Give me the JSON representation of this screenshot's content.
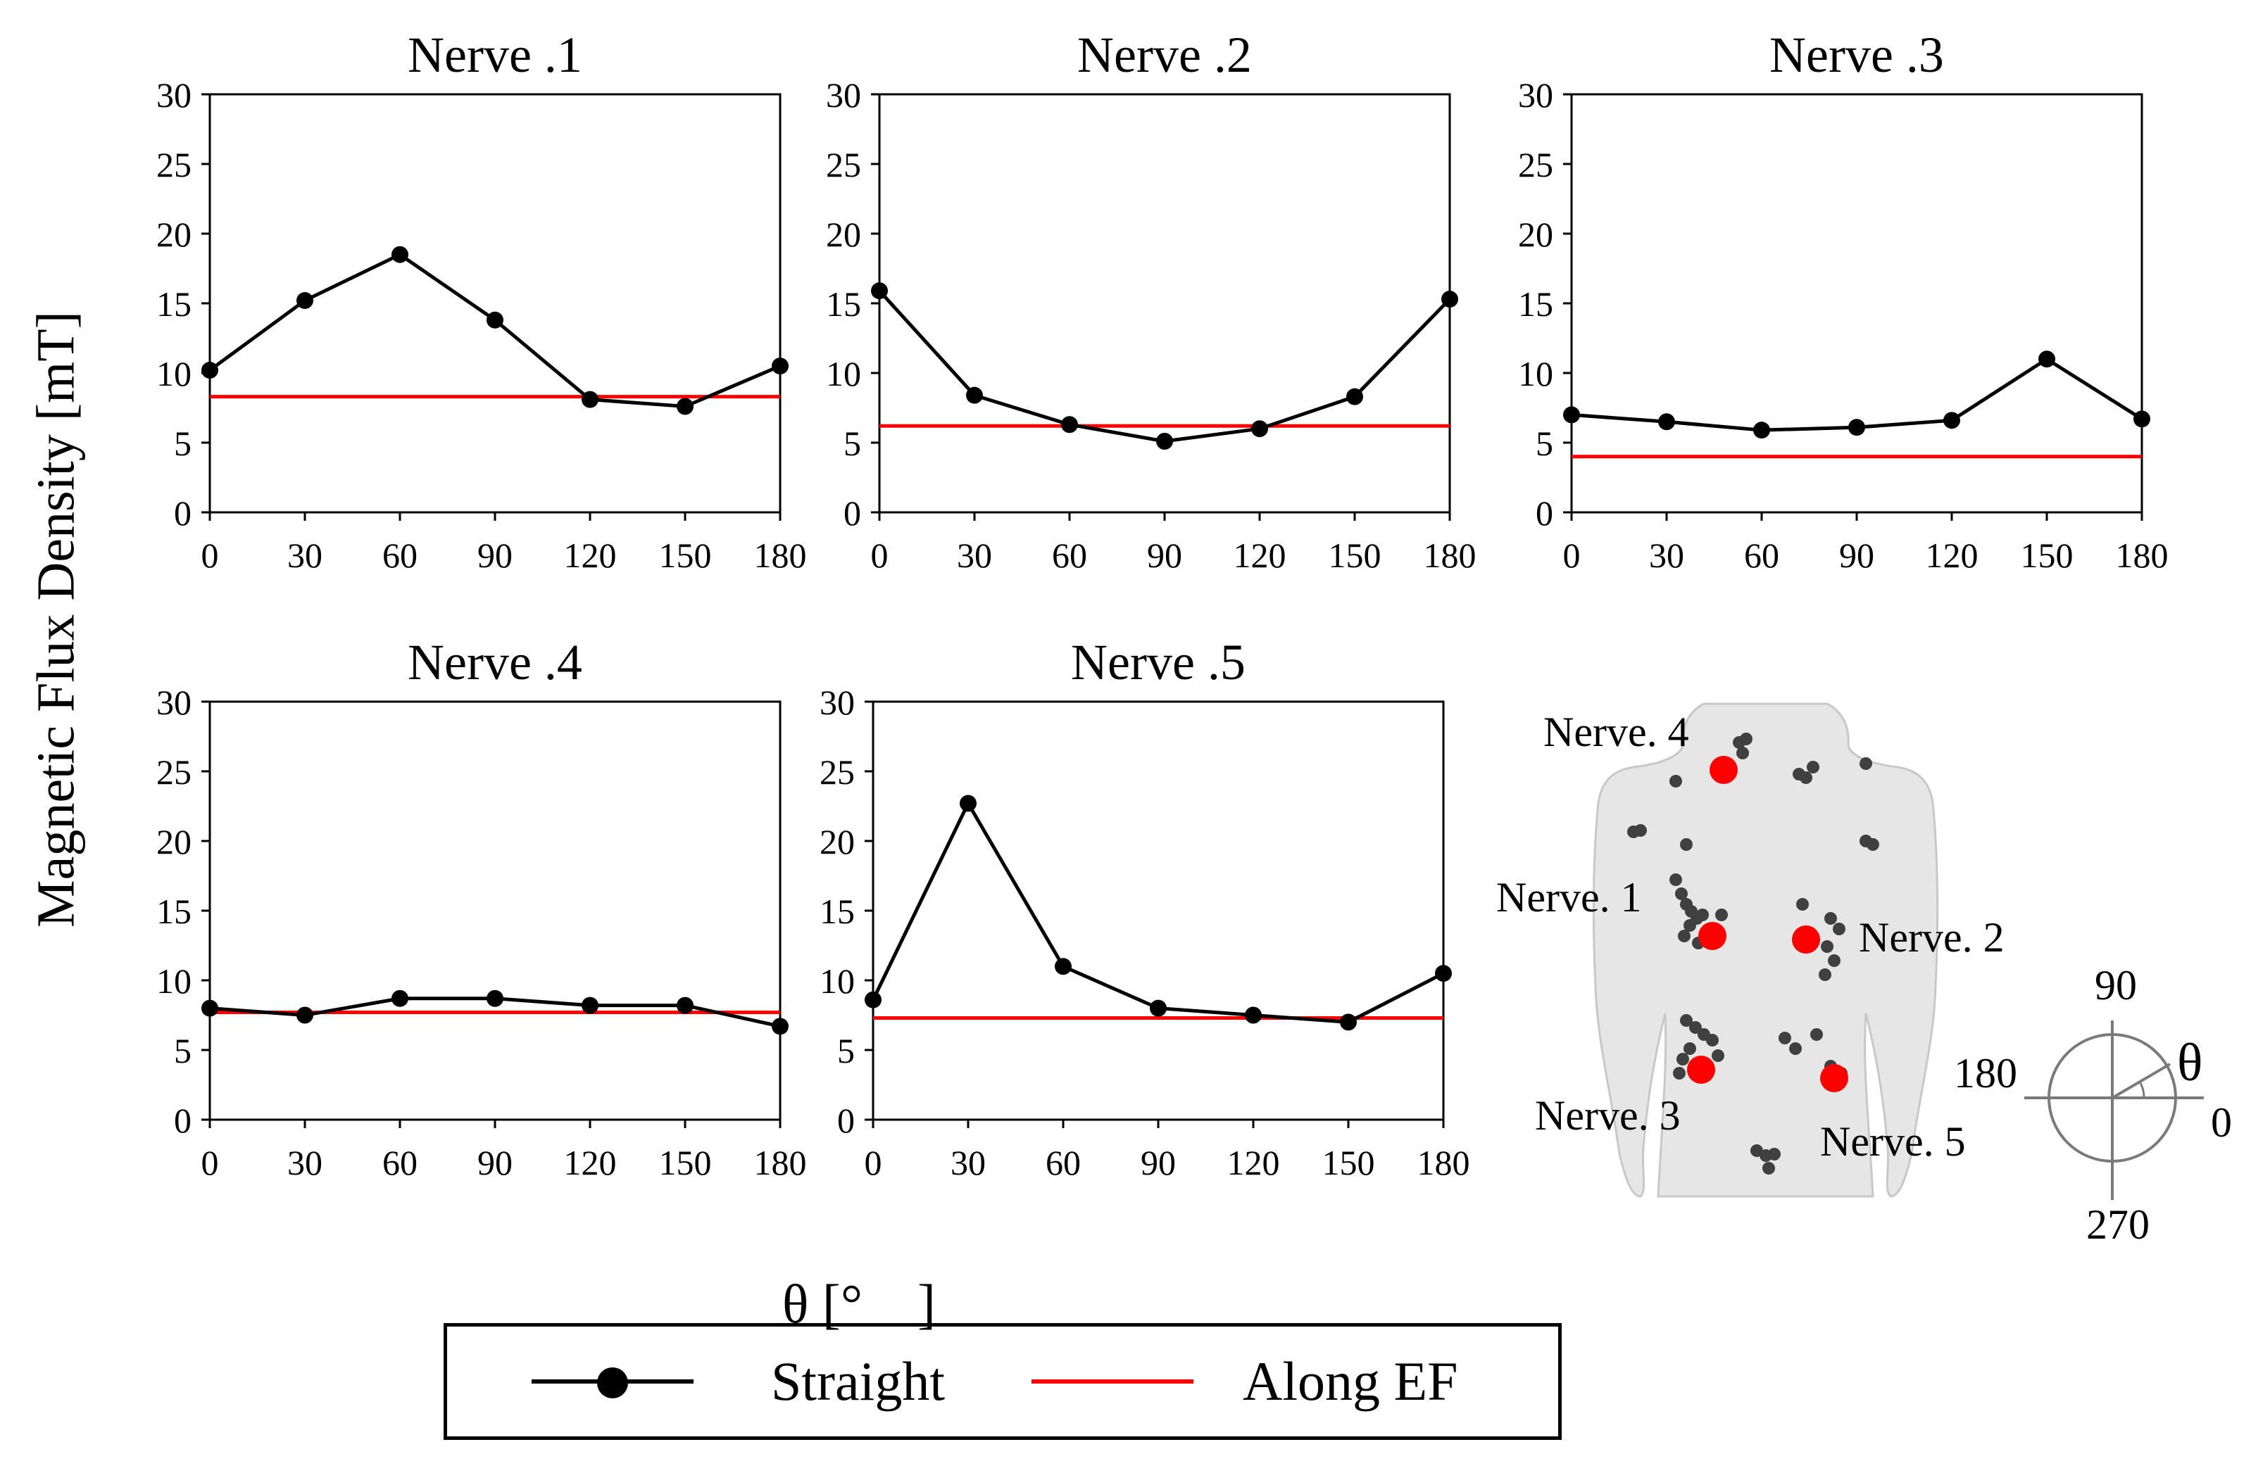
{
  "colors": {
    "straight": "#000000",
    "along_ef": "#ff0000",
    "body": "#e4e4e4",
    "nerve_marker": "#ff0000",
    "other_points": "#404040"
  },
  "y_axis_label": "Magnetic Flux Density [mT]",
  "x_axis_label": "θ [°　]",
  "legend": {
    "straight": "Straight",
    "along_ef": "Along EF"
  },
  "body_figure": {
    "labels": [
      "Nerve. 4",
      "Nerve. 1",
      "Nerve. 2",
      "Nerve. 3",
      "Nerve. 5"
    ]
  },
  "angle_diagram": {
    "labels": [
      "90",
      "180",
      "0",
      "270",
      "θ"
    ]
  },
  "chart_data": [
    {
      "type": "line",
      "title": "Nerve .1",
      "x": [
        0,
        30,
        60,
        90,
        120,
        150,
        180
      ],
      "ylim": [
        0,
        30
      ],
      "yticks": [
        0,
        5,
        10,
        15,
        20,
        25,
        30
      ],
      "series": [
        {
          "name": "Straight",
          "values": [
            10.2,
            15.2,
            18.5,
            13.8,
            8.1,
            7.6,
            10.5
          ]
        },
        {
          "name": "Along EF",
          "values": [
            8.3,
            8.3,
            8.3,
            8.3,
            8.3,
            8.3,
            8.3
          ]
        }
      ]
    },
    {
      "type": "line",
      "title": "Nerve .2",
      "x": [
        0,
        30,
        60,
        90,
        120,
        150,
        180
      ],
      "ylim": [
        0,
        30
      ],
      "yticks": [
        0,
        5,
        10,
        15,
        20,
        25,
        30
      ],
      "series": [
        {
          "name": "Straight",
          "values": [
            15.9,
            8.4,
            6.3,
            5.1,
            6.0,
            8.3,
            15.3
          ]
        },
        {
          "name": "Along EF",
          "values": [
            6.2,
            6.2,
            6.2,
            6.2,
            6.2,
            6.2,
            6.2
          ]
        }
      ]
    },
    {
      "type": "line",
      "title": "Nerve .3",
      "x": [
        0,
        30,
        60,
        90,
        120,
        150,
        180
      ],
      "ylim": [
        0,
        30
      ],
      "yticks": [
        0,
        5,
        10,
        15,
        20,
        25,
        30
      ],
      "series": [
        {
          "name": "Straight",
          "values": [
            7.0,
            6.5,
            5.9,
            6.1,
            6.6,
            11.0,
            6.7
          ]
        },
        {
          "name": "Along EF",
          "values": [
            4.0,
            4.0,
            4.0,
            4.0,
            4.0,
            4.0,
            4.0
          ]
        }
      ]
    },
    {
      "type": "line",
      "title": "Nerve .4",
      "x": [
        0,
        30,
        60,
        90,
        120,
        150,
        180
      ],
      "ylim": [
        0,
        30
      ],
      "yticks": [
        0,
        5,
        10,
        15,
        20,
        25,
        30
      ],
      "series": [
        {
          "name": "Straight",
          "values": [
            8.0,
            7.5,
            8.7,
            8.7,
            8.2,
            8.2,
            6.7
          ]
        },
        {
          "name": "Along EF",
          "values": [
            7.7,
            7.7,
            7.7,
            7.7,
            7.7,
            7.7,
            7.7
          ]
        }
      ]
    },
    {
      "type": "line",
      "title": "Nerve .5",
      "x": [
        0,
        30,
        60,
        90,
        120,
        150,
        180
      ],
      "ylim": [
        0,
        30
      ],
      "yticks": [
        0,
        5,
        10,
        15,
        20,
        25,
        30
      ],
      "series": [
        {
          "name": "Straight",
          "values": [
            8.6,
            22.7,
            11.0,
            8.0,
            7.5,
            7.0,
            10.5
          ]
        },
        {
          "name": "Along EF",
          "values": [
            7.3,
            7.3,
            7.3,
            7.3,
            7.3,
            7.3,
            7.3
          ]
        }
      ]
    }
  ]
}
